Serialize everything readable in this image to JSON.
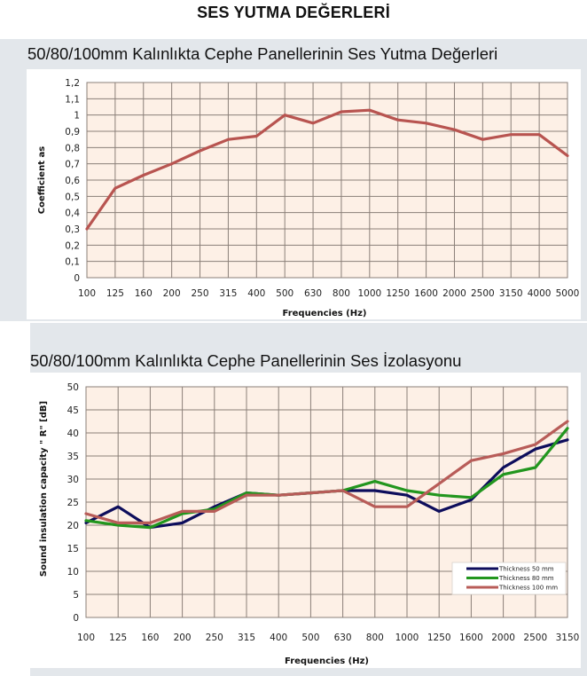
{
  "page_title": "SES YUTMA DEĞERLERİ",
  "chart_data": [
    {
      "type": "line",
      "title": "50/80/100mm Kalınlıkta Cephe Panellerinin Ses Yutma Değerleri",
      "xlabel": "Frequencies (Hz)",
      "ylabel": "Coefficient as",
      "categories": [
        "100",
        "125",
        "160",
        "200",
        "250",
        "315",
        "400",
        "500",
        "630",
        "800",
        "1000",
        "1250",
        "1600",
        "2000",
        "2500",
        "3150",
        "4000",
        "5000"
      ],
      "yticks": [
        "0",
        "0,1",
        "0,2",
        "0,3",
        "0,4",
        "0,5",
        "0,6",
        "0,7",
        "0,8",
        "0,9",
        "1",
        "1,1",
        "1,2"
      ],
      "ylim": [
        0,
        1.2
      ],
      "ystep": 0.1,
      "grid": true,
      "series": [
        {
          "name": "Coefficient as",
          "color": "#b85450",
          "values": [
            0.3,
            0.55,
            0.63,
            0.7,
            0.78,
            0.85,
            0.87,
            1.0,
            0.95,
            1.02,
            1.03,
            0.97,
            0.95,
            0.91,
            0.85,
            0.88,
            0.88,
            0.75
          ]
        }
      ]
    },
    {
      "type": "line",
      "title": "50/80/100mm Kalınlıkta Cephe Panellerinin Ses İzolasyonu",
      "xlabel": "Frequencies (Hz)",
      "ylabel": "Sound insulation capacity \" R\" [dB]",
      "categories": [
        "100",
        "125",
        "160",
        "200",
        "250",
        "315",
        "400",
        "500",
        "630",
        "800",
        "1000",
        "1250",
        "1600",
        "2000",
        "2500",
        "3150"
      ],
      "yticks": [
        "0",
        "5",
        "10",
        "15",
        "20",
        "25",
        "30",
        "35",
        "40",
        "45",
        "50"
      ],
      "ylim": [
        0,
        50
      ],
      "ystep": 5,
      "grid": true,
      "legend_position": "bottom-right",
      "series": [
        {
          "name": "Thickness 50 mm",
          "color": "#0d0d5c",
          "values": [
            20.5,
            24,
            19.5,
            20.5,
            24,
            27,
            26.5,
            27,
            27.5,
            27.5,
            26.5,
            23,
            25.5,
            32.5,
            36.5,
            38.5
          ]
        },
        {
          "name": "Thickness 80 mm",
          "color": "#22961e",
          "values": [
            21,
            20,
            19.5,
            22.5,
            23.5,
            27,
            26.5,
            27,
            27.5,
            29.5,
            27.5,
            26.5,
            26,
            31,
            32.5,
            41
          ]
        },
        {
          "name": "Thickness 100 mm",
          "color": "#b85c58",
          "values": [
            22.5,
            20.5,
            20.5,
            23,
            23,
            26.5,
            26.5,
            27,
            27.5,
            24,
            24,
            29,
            34,
            35.5,
            37.5,
            42.5
          ]
        }
      ]
    }
  ]
}
